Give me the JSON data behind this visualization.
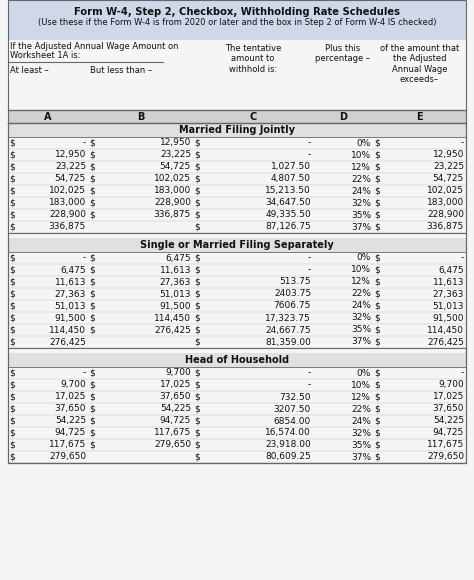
{
  "title_line1": "Form W-4, Step 2, Checkbox, Withholding Rate Schedules",
  "title_line2": "(Use these if the Form W-4 is from 2020 or later and the box in Step 2 of Form W-4 IS checked)",
  "header_note_line1": "If the Adjusted Annual Wage Amount on",
  "header_note_line2": "Worksheet 1A is:",
  "at_least_label": "At least –",
  "but_less_label": "But less than –",
  "col_c_header": "The tentative\namount to\nwithhold is:",
  "col_d_header": "Plus this\npercentage –",
  "col_e_header": "of the amount that\nthe Adjusted\nAnnual Wage\nexceeds–",
  "col_letters": [
    "A",
    "B",
    "C",
    "D",
    "E"
  ],
  "sections": [
    {
      "title": "Married Filing Jointly",
      "rows": [
        [
          "$",
          "-",
          "$",
          "12,950",
          "$",
          "-",
          "0%",
          "$",
          "-"
        ],
        [
          "$",
          "12,950",
          "$",
          "23,225",
          "$",
          "-",
          "10%",
          "$",
          "12,950"
        ],
        [
          "$",
          "23,225",
          "$",
          "54,725",
          "$",
          "1,027.50",
          "12%",
          "$",
          "23,225"
        ],
        [
          "$",
          "54,725",
          "$",
          "102,025",
          "$",
          "4,807.50",
          "22%",
          "$",
          "54,725"
        ],
        [
          "$",
          "102,025",
          "$",
          "183,000",
          "$",
          "15,213.50",
          "24%",
          "$",
          "102,025"
        ],
        [
          "$",
          "183,000",
          "$",
          "228,900",
          "$",
          "34,647.50",
          "32%",
          "$",
          "183,000"
        ],
        [
          "$",
          "228,900",
          "$",
          "336,875",
          "$",
          "49,335.50",
          "35%",
          "$",
          "228,900"
        ],
        [
          "$",
          "336,875",
          "",
          "",
          "$",
          "87,126.75",
          "37%",
          "$",
          "336,875"
        ]
      ]
    },
    {
      "title": "Single or Married Filing Separately",
      "rows": [
        [
          "$",
          "-",
          "$",
          "6,475",
          "$",
          "-",
          "0%",
          "$",
          "-"
        ],
        [
          "$",
          "6,475",
          "$",
          "11,613",
          "$",
          "-",
          "10%",
          "$",
          "6,475"
        ],
        [
          "$",
          "11,613",
          "$",
          "27,363",
          "$",
          "513.75",
          "12%",
          "$",
          "11,613"
        ],
        [
          "$",
          "27,363",
          "$",
          "51,013",
          "$",
          "2403.75",
          "22%",
          "$",
          "27,363"
        ],
        [
          "$",
          "51,013",
          "$",
          "91,500",
          "$",
          "7606.75",
          "24%",
          "$",
          "51,013"
        ],
        [
          "$",
          "91,500",
          "$",
          "114,450",
          "$",
          "17,323.75",
          "32%",
          "$",
          "91,500"
        ],
        [
          "$",
          "114,450",
          "$",
          "276,425",
          "$",
          "24,667.75",
          "35%",
          "$",
          "114,450"
        ],
        [
          "$",
          "276,425",
          "",
          "",
          "$",
          "81,359.00",
          "37%",
          "$",
          "276,425"
        ]
      ]
    },
    {
      "title": "Head of Household",
      "rows": [
        [
          "$",
          "-",
          "$",
          "9,700",
          "$",
          "-",
          "0%",
          "$",
          "-"
        ],
        [
          "$",
          "9,700",
          "$",
          "17,025",
          "$",
          "-",
          "10%",
          "$",
          "9,700"
        ],
        [
          "$",
          "17,025",
          "$",
          "37,650",
          "$",
          "732.50",
          "12%",
          "$",
          "17,025"
        ],
        [
          "$",
          "37,650",
          "$",
          "54,225",
          "$",
          "3207.50",
          "22%",
          "$",
          "37,650"
        ],
        [
          "$",
          "54,225",
          "$",
          "94,725",
          "$",
          "6854.00",
          "24%",
          "$",
          "54,225"
        ],
        [
          "$",
          "94,725",
          "$",
          "117,675",
          "$",
          "16,574.00",
          "32%",
          "$",
          "94,725"
        ],
        [
          "$",
          "117,675",
          "$",
          "279,650",
          "$",
          "23,918.00",
          "35%",
          "$",
          "117,675"
        ],
        [
          "$",
          "279,650",
          "",
          "",
          "$",
          "80,609.25",
          "37%",
          "$",
          "279,650"
        ]
      ]
    }
  ],
  "bg_title": "#cfd8e8",
  "bg_white": "#f5f5f5",
  "bg_section_header": "#e0e0e0",
  "bg_col_letter": "#d0d0d0",
  "text_color": "#111111",
  "border_color": "#666666",
  "thin_line": "#bbbbbb",
  "title_fontsize": 7.2,
  "subtitle_fontsize": 6.0,
  "header_fontsize": 6.0,
  "letter_fontsize": 7.0,
  "data_fontsize": 6.5,
  "section_title_fontsize": 7.0
}
